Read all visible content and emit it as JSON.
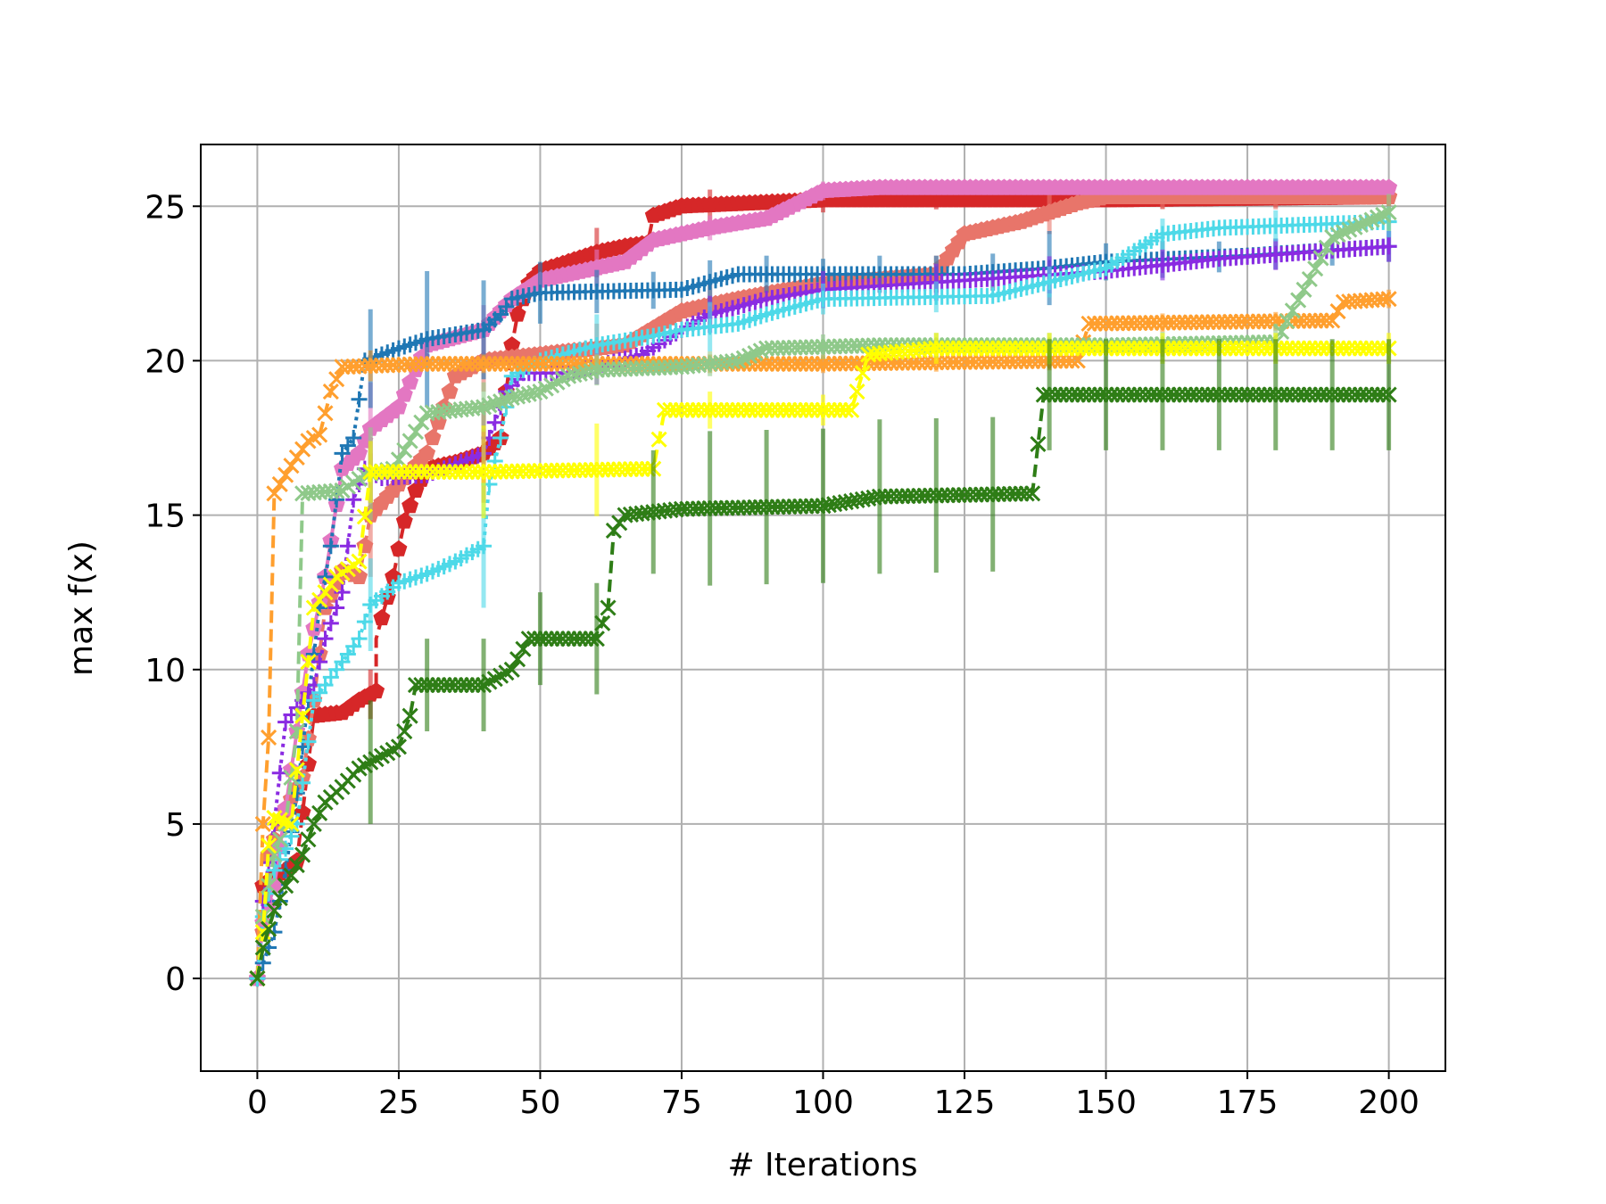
{
  "chart_data": {
    "type": "line",
    "title": "",
    "xlabel": "# Iterations",
    "ylabel": "max f(x)",
    "xlim": [
      -10,
      210
    ],
    "ylim": [
      -3,
      27
    ],
    "xticks": [
      0,
      25,
      50,
      75,
      100,
      125,
      150,
      175,
      200
    ],
    "yticks": [
      0,
      5,
      10,
      15,
      20,
      25
    ],
    "xtick_labels": [
      "0",
      "25",
      "50",
      "75",
      "100",
      "125",
      "150",
      "175",
      "200"
    ],
    "ytick_labels": [
      "0",
      "5",
      "10",
      "15",
      "20",
      "25"
    ],
    "grid": true,
    "legend": "none",
    "series": [
      {
        "color": "#d62728",
        "marker": "pentagon",
        "linestyle": "dashed",
        "points": [
          [
            0,
            0
          ],
          [
            1,
            3
          ],
          [
            3,
            3.3
          ],
          [
            5,
            3.5
          ],
          [
            7,
            3.8
          ],
          [
            10,
            8.5
          ],
          [
            15,
            8.6
          ],
          [
            18,
            9
          ],
          [
            21,
            9.3
          ],
          [
            21,
            11
          ],
          [
            24,
            13
          ],
          [
            26,
            14.8
          ],
          [
            28,
            15.8
          ],
          [
            30,
            16.5
          ],
          [
            35,
            16.7
          ],
          [
            40,
            17
          ],
          [
            43,
            17.5
          ],
          [
            44,
            19
          ],
          [
            45,
            20.5
          ],
          [
            46,
            21.5
          ],
          [
            48,
            22.5
          ],
          [
            50,
            22.9
          ],
          [
            55,
            23.2
          ],
          [
            60,
            23.5
          ],
          [
            65,
            23.7
          ],
          [
            69,
            23.8
          ],
          [
            70,
            24.7
          ],
          [
            75,
            25
          ],
          [
            100,
            25.2
          ],
          [
            150,
            25.2
          ],
          [
            200,
            25.3
          ]
        ],
        "error_x": [
          20,
          40,
          60,
          80,
          100,
          120,
          140,
          160,
          180,
          200
        ],
        "error": [
          0.8,
          1.6,
          0.8,
          0.5,
          0.4,
          0.3,
          0.3,
          0.3,
          0.3,
          0.3
        ]
      },
      {
        "color": "#e8756a",
        "marker": "pentagon",
        "linestyle": "dashed",
        "points": [
          [
            0,
            0
          ],
          [
            1,
            1.5
          ],
          [
            2,
            4
          ],
          [
            4,
            5
          ],
          [
            6,
            5.8
          ],
          [
            8,
            6.5
          ],
          [
            10,
            9
          ],
          [
            12,
            12
          ],
          [
            15,
            13.2
          ],
          [
            18,
            13
          ],
          [
            20,
            15
          ],
          [
            25,
            16
          ],
          [
            30,
            17
          ],
          [
            35,
            19.5
          ],
          [
            40,
            20
          ],
          [
            50,
            20.2
          ],
          [
            65,
            20.5
          ],
          [
            75,
            21.6
          ],
          [
            85,
            22
          ],
          [
            100,
            22.5
          ],
          [
            120,
            22.8
          ],
          [
            125,
            24.1
          ],
          [
            135,
            24.5
          ],
          [
            145,
            25.1
          ],
          [
            150,
            25.3
          ],
          [
            200,
            25.3
          ]
        ],
        "error_x": [
          20,
          40,
          60,
          80,
          100,
          120,
          140,
          160,
          180,
          200
        ],
        "error": [
          2,
          1,
          0.8,
          0.7,
          0.5,
          0.6,
          0.7,
          0.4,
          0.4,
          0.4
        ]
      },
      {
        "color": "#e377c2",
        "marker": "pentagon",
        "linestyle": "solid",
        "points": [
          [
            0,
            0
          ],
          [
            1,
            1.8
          ],
          [
            3,
            3
          ],
          [
            5,
            5.5
          ],
          [
            7,
            8
          ],
          [
            9,
            10.5
          ],
          [
            12,
            13
          ],
          [
            15,
            16.5
          ],
          [
            18,
            17
          ],
          [
            20,
            17.8
          ],
          [
            25,
            18.5
          ],
          [
            30,
            20.5
          ],
          [
            40,
            21
          ],
          [
            45,
            22
          ],
          [
            50,
            22.6
          ],
          [
            60,
            23
          ],
          [
            65,
            23.2
          ],
          [
            70,
            23.9
          ],
          [
            80,
            24.3
          ],
          [
            90,
            24.6
          ],
          [
            100,
            25.5
          ],
          [
            110,
            25.6
          ],
          [
            200,
            25.6
          ]
        ],
        "error_x": [
          20,
          40,
          60,
          80,
          100,
          120,
          140,
          160,
          180,
          200
        ],
        "error": [
          1.5,
          0.8,
          0.6,
          0.4,
          0.3,
          0.2,
          0.2,
          0.2,
          0.2,
          0.2
        ]
      },
      {
        "color": "#1f77b4",
        "marker": "plus",
        "linestyle": "dotted",
        "points": [
          [
            0,
            0
          ],
          [
            1,
            0.5
          ],
          [
            3,
            1.5
          ],
          [
            5,
            3.5
          ],
          [
            7,
            6
          ],
          [
            9,
            9
          ],
          [
            11,
            12
          ],
          [
            13,
            14
          ],
          [
            15,
            17
          ],
          [
            17,
            17.5
          ],
          [
            19,
            20
          ],
          [
            22,
            20.2
          ],
          [
            25,
            20.4
          ],
          [
            30,
            20.7
          ],
          [
            40,
            21
          ],
          [
            43,
            21.5
          ],
          [
            45,
            22
          ],
          [
            50,
            22.2
          ],
          [
            75,
            22.3
          ],
          [
            85,
            22.8
          ],
          [
            125,
            22.8
          ],
          [
            140,
            23
          ],
          [
            150,
            23.2
          ],
          [
            175,
            23.4
          ],
          [
            200,
            23.7
          ]
        ],
        "error_x": [
          20,
          30,
          40,
          50,
          60,
          70,
          80,
          90,
          100,
          110,
          120,
          130,
          140,
          150,
          160,
          170,
          180,
          190,
          200
        ],
        "error": [
          1.6,
          2.2,
          1.6,
          1,
          0.7,
          0.6,
          0.7,
          0.6,
          0.5,
          0.6,
          0.6,
          0.6,
          1.2,
          0.6,
          0.6,
          0.5,
          0.5,
          0.5,
          0.5
        ]
      },
      {
        "color": "#8a2be2",
        "marker": "plus",
        "linestyle": "dotted",
        "points": [
          [
            0,
            0
          ],
          [
            1,
            2.5
          ],
          [
            3,
            5
          ],
          [
            5,
            8.3
          ],
          [
            8,
            9
          ],
          [
            10,
            9.5
          ],
          [
            12,
            11
          ],
          [
            15,
            12.5
          ],
          [
            17,
            15.5
          ],
          [
            19,
            16.5
          ],
          [
            22,
            16.2
          ],
          [
            30,
            16.3
          ],
          [
            40,
            17
          ],
          [
            44,
            19
          ],
          [
            47,
            19.6
          ],
          [
            55,
            19.6
          ],
          [
            68,
            20.2
          ],
          [
            75,
            21
          ],
          [
            80,
            21.5
          ],
          [
            90,
            22
          ],
          [
            100,
            22.3
          ],
          [
            125,
            22.6
          ],
          [
            150,
            22.9
          ],
          [
            170,
            23.3
          ],
          [
            200,
            23.7
          ]
        ],
        "error_x": [
          20,
          40,
          60,
          80,
          100,
          120,
          140,
          160,
          180,
          200
        ],
        "error": [
          1,
          0.8,
          0.6,
          0.6,
          0.6,
          0.6,
          0.6,
          0.5,
          0.5,
          0.5
        ]
      },
      {
        "color": "#4dd9e8",
        "marker": "plus",
        "linestyle": "dotted",
        "points": [
          [
            0,
            0
          ],
          [
            1,
            2
          ],
          [
            3,
            3.5
          ],
          [
            5,
            4.2
          ],
          [
            7,
            5
          ],
          [
            10,
            9
          ],
          [
            14,
            10
          ],
          [
            18,
            11
          ],
          [
            20,
            12.1
          ],
          [
            25,
            12.8
          ],
          [
            30,
            13.1
          ],
          [
            35,
            13.5
          ],
          [
            40,
            14
          ],
          [
            41,
            16
          ],
          [
            43,
            17.5
          ],
          [
            45,
            19.5
          ],
          [
            50,
            20
          ],
          [
            60,
            20.5
          ],
          [
            70,
            20.8
          ],
          [
            75,
            21
          ],
          [
            85,
            21.2
          ],
          [
            90,
            21.5
          ],
          [
            100,
            22
          ],
          [
            130,
            22.1
          ],
          [
            150,
            23
          ],
          [
            160,
            24.1
          ],
          [
            170,
            24.3
          ],
          [
            200,
            24.5
          ]
        ],
        "error_x": [
          20,
          40,
          60,
          80,
          100,
          120,
          140,
          160,
          180,
          200
        ],
        "error": [
          1.5,
          2,
          1,
          0.8,
          0.5,
          0.5,
          0.5,
          0.5,
          0.5,
          0.5
        ]
      },
      {
        "color": "#ff9f2e",
        "marker": "x",
        "linestyle": "dashed",
        "points": [
          [
            0,
            0
          ],
          [
            1,
            5
          ],
          [
            2,
            7.8
          ],
          [
            3,
            15.7
          ],
          [
            6,
            16.6
          ],
          [
            9,
            17.4
          ],
          [
            11,
            17.6
          ],
          [
            13,
            19
          ],
          [
            15,
            19.8
          ],
          [
            30,
            19.9
          ],
          [
            100,
            19.9
          ],
          [
            145,
            20
          ],
          [
            147,
            21.2
          ],
          [
            190,
            21.3
          ],
          [
            192,
            21.9
          ],
          [
            200,
            22
          ]
        ],
        "error_x": [
          20,
          40,
          60,
          80,
          100,
          120,
          140,
          160,
          180,
          200
        ],
        "error": [
          0.5,
          0.3,
          0.3,
          0.3,
          0.3,
          0.3,
          0.3,
          0.3,
          0.3,
          0.3
        ]
      },
      {
        "color": "#8fc98a",
        "marker": "x",
        "linestyle": "dashed",
        "points": [
          [
            0,
            0
          ],
          [
            1,
            2
          ],
          [
            3,
            4
          ],
          [
            5,
            5
          ],
          [
            7,
            8
          ],
          [
            8,
            15.7
          ],
          [
            15,
            15.8
          ],
          [
            19,
            16.3
          ],
          [
            24,
            16.5
          ],
          [
            30,
            18.3
          ],
          [
            40,
            18.5
          ],
          [
            45,
            18.8
          ],
          [
            50,
            19
          ],
          [
            55,
            19.5
          ],
          [
            60,
            19.7
          ],
          [
            75,
            19.8
          ],
          [
            85,
            20
          ],
          [
            90,
            20.4
          ],
          [
            110,
            20.5
          ],
          [
            150,
            20.5
          ],
          [
            180,
            20.6
          ],
          [
            190,
            24
          ],
          [
            200,
            24.8
          ]
        ],
        "error_x": [
          20,
          40,
          60,
          80,
          100,
          120,
          140,
          160,
          180,
          200
        ],
        "error": [
          1.5,
          0.8,
          0.5,
          0.4,
          0.4,
          0.4,
          0.4,
          0.4,
          0.6,
          0.6
        ]
      },
      {
        "color": "#ffff00",
        "marker": "x",
        "linestyle": "dashed",
        "points": [
          [
            0,
            0
          ],
          [
            1,
            1.5
          ],
          [
            2,
            4.3
          ],
          [
            3,
            5.2
          ],
          [
            6,
            5
          ],
          [
            8,
            8.5
          ],
          [
            10,
            12
          ],
          [
            14,
            13
          ],
          [
            18,
            13.5
          ],
          [
            20,
            16.4
          ],
          [
            40,
            16.4
          ],
          [
            70,
            16.5
          ],
          [
            72,
            18.4
          ],
          [
            105,
            18.4
          ],
          [
            108,
            20.2
          ],
          [
            120,
            20.4
          ],
          [
            200,
            20.4
          ]
        ],
        "error_x": [
          20,
          40,
          60,
          80,
          100,
          120,
          140,
          160,
          180,
          200
        ],
        "error": [
          1,
          1.5,
          1.5,
          0.6,
          0.5,
          0.5,
          0.5,
          0.5,
          0.5,
          0.5
        ]
      },
      {
        "color": "#2e7d16",
        "marker": "x",
        "linestyle": "dashed",
        "points": [
          [
            0,
            0
          ],
          [
            1,
            1
          ],
          [
            3,
            2.2
          ],
          [
            5,
            3
          ],
          [
            8,
            4
          ],
          [
            10,
            5
          ],
          [
            12,
            5.7
          ],
          [
            15,
            6.2
          ],
          [
            18,
            6.8
          ],
          [
            20,
            7
          ],
          [
            25,
            7.5
          ],
          [
            27,
            8.5
          ],
          [
            28,
            9.5
          ],
          [
            40,
            9.5
          ],
          [
            45,
            10
          ],
          [
            48,
            11
          ],
          [
            60,
            11
          ],
          [
            62,
            12
          ],
          [
            63,
            14.5
          ],
          [
            65,
            15
          ],
          [
            75,
            15.2
          ],
          [
            100,
            15.3
          ],
          [
            110,
            15.6
          ],
          [
            137,
            15.7
          ],
          [
            139,
            18.9
          ],
          [
            200,
            18.9
          ]
        ],
        "error_x": [
          20,
          30,
          40,
          50,
          60,
          70,
          80,
          90,
          100,
          110,
          120,
          130,
          140,
          150,
          160,
          170,
          180,
          190,
          200
        ],
        "error": [
          2,
          1.5,
          1.5,
          1.5,
          1.8,
          2,
          2.5,
          2.5,
          2.5,
          2.5,
          2.5,
          2.5,
          1.8,
          1.8,
          1.8,
          1.8,
          1.8,
          1.8,
          1.8
        ]
      }
    ]
  }
}
